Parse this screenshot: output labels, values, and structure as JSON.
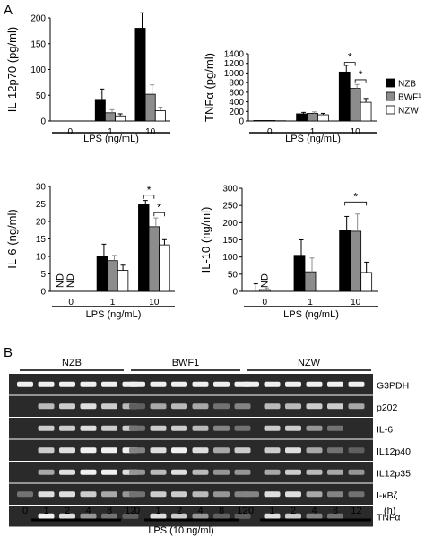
{
  "panel_labels": {
    "a": "A",
    "b": "B"
  },
  "legend": [
    {
      "label": "NZB",
      "color": "#000000"
    },
    {
      "label": "BWF¹",
      "color": "#8c8c8c"
    },
    {
      "label": "NZW",
      "color": "#ffffff"
    }
  ],
  "chart_data": [
    {
      "type": "bar",
      "ylabel": "IL-12p70 (pg/ml)",
      "xlabel": "LPS (ng/mL)",
      "categories": [
        "0",
        "1",
        "10"
      ],
      "ylim": [
        0,
        200
      ],
      "yticks": [
        0,
        50,
        100,
        150,
        200
      ],
      "series": [
        {
          "name": "NZB",
          "values": [
            0,
            42,
            180
          ],
          "errors": [
            0,
            20,
            30
          ]
        },
        {
          "name": "BWF¹",
          "values": [
            0,
            16,
            52
          ],
          "errors": [
            0,
            6,
            18
          ]
        },
        {
          "name": "NZW",
          "values": [
            0,
            10,
            20
          ],
          "errors": [
            0,
            4,
            6
          ]
        }
      ],
      "annotations": []
    },
    {
      "type": "bar",
      "ylabel": "TNFα (pg/ml)",
      "xlabel": "LPS (ng/mL)",
      "categories": [
        "0",
        "1",
        "10"
      ],
      "ylim": [
        0,
        1400
      ],
      "yticks": [
        0,
        200,
        400,
        600,
        800,
        1000,
        1200,
        1400
      ],
      "series": [
        {
          "name": "NZB",
          "values": [
            10,
            150,
            1020
          ],
          "errors": [
            0,
            30,
            140
          ]
        },
        {
          "name": "BWF¹",
          "values": [
            10,
            160,
            680
          ],
          "errors": [
            0,
            30,
            80
          ]
        },
        {
          "name": "NZW",
          "values": [
            5,
            130,
            390
          ],
          "errors": [
            0,
            30,
            80
          ]
        }
      ],
      "annotations": [
        {
          "label": "*",
          "between": [
            "NZB",
            "BWF¹"
          ],
          "category": "10",
          "level": 1220
        },
        {
          "label": "*",
          "between": [
            "BWF¹",
            "NZW"
          ],
          "category": "10",
          "level": 860
        }
      ]
    },
    {
      "type": "bar",
      "ylabel": "IL-6 (ng/ml)",
      "xlabel": "LPS (ng/mL)",
      "categories": [
        "0",
        "1",
        "10"
      ],
      "ylim": [
        0,
        30
      ],
      "yticks": [
        0,
        5,
        10,
        15,
        20,
        25,
        30
      ],
      "series": [
        {
          "name": "NZB",
          "values": [
            0,
            10,
            25
          ],
          "errors": [
            0,
            3.5,
            1
          ],
          "labels": [
            "ND",
            "",
            ""
          ]
        },
        {
          "name": "BWF¹",
          "values": [
            0,
            8.8,
            18.5
          ],
          "errors": [
            0,
            1.5,
            2.5
          ],
          "labels": [
            "ND",
            "",
            ""
          ]
        },
        {
          "name": "NZW",
          "values": [
            0,
            6,
            13.3
          ],
          "errors": [
            0,
            1.5,
            1.5
          ],
          "labels": [
            "",
            "",
            ""
          ]
        }
      ],
      "annotations": [
        {
          "label": "*",
          "between": [
            "NZB",
            "BWF¹"
          ],
          "category": "10",
          "level": 27.5
        },
        {
          "label": "*",
          "between": [
            "BWF¹",
            "NZW"
          ],
          "category": "10",
          "level": 22.5
        }
      ]
    },
    {
      "type": "bar",
      "ylabel": "IL-10 (ng/ml)",
      "xlabel": "LPS (ng/mL)",
      "categories": [
        "0",
        "1",
        "10"
      ],
      "ylim": [
        0,
        300
      ],
      "yticks": [
        0,
        50,
        100,
        150,
        200,
        250,
        300
      ],
      "series": [
        {
          "name": "NZB",
          "values": [
            0,
            105,
            178
          ],
          "errors": [
            22,
            45,
            40
          ],
          "labels": [
            "",
            "",
            ""
          ]
        },
        {
          "name": "BWF¹",
          "values": [
            5,
            57,
            175
          ],
          "errors": [
            5,
            40,
            50
          ],
          "labels": [
            "ND",
            "",
            ""
          ]
        },
        {
          "name": "NZW",
          "values": [
            0,
            0,
            55
          ],
          "errors": [
            0,
            0,
            30
          ],
          "labels": [
            "",
            "",
            ""
          ]
        }
      ],
      "annotations": [
        {
          "label": "*",
          "between": [
            "NZB",
            "NZW"
          ],
          "category": "10",
          "level": 260
        }
      ]
    }
  ],
  "gel": {
    "strains": [
      "NZB",
      "BWF1",
      "NZW"
    ],
    "genes": [
      "G3PDH",
      "p202",
      "IL-6",
      "IL12p40",
      "IL12p35",
      "I-κBζ",
      "TNFα"
    ],
    "timepoints": [
      "0",
      "1",
      "2",
      "4",
      "8",
      "12"
    ],
    "time_unit": "(h)",
    "treatment": "LPS (10 ng/ml)"
  }
}
